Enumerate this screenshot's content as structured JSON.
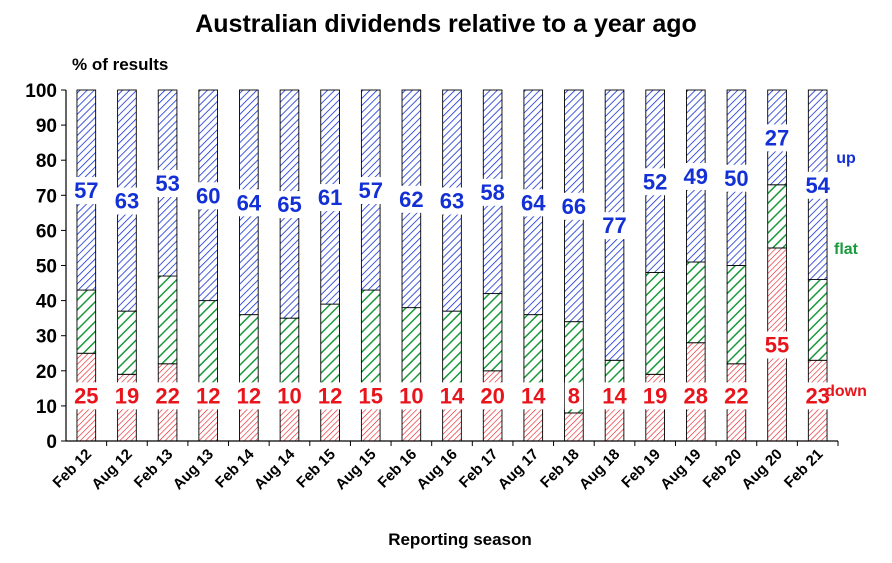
{
  "chart_data": {
    "type": "bar",
    "stacked": true,
    "title": "Australian dividends relative to a year ago",
    "ylabel": "% of results",
    "xlabel": "Reporting season",
    "ylim": [
      0,
      100
    ],
    "yticks": [
      0,
      10,
      20,
      30,
      40,
      50,
      60,
      70,
      80,
      90,
      100
    ],
    "grid": false,
    "categories": [
      "Feb 12",
      "Aug 12",
      "Feb 13",
      "Aug 13",
      "Feb 14",
      "Aug 14",
      "Feb 15",
      "Aug 15",
      "Feb 16",
      "Aug 16",
      "Feb 17",
      "Aug 17",
      "Feb 18",
      "Aug 18",
      "Feb 19",
      "Aug 19",
      "Feb 20",
      "Aug 20",
      "Feb 21"
    ],
    "series": [
      {
        "name": "down",
        "color": "#e8141b",
        "values": [
          25,
          19,
          22,
          12,
          12,
          10,
          12,
          15,
          10,
          14,
          20,
          14,
          8,
          14,
          19,
          28,
          22,
          55,
          23
        ]
      },
      {
        "name": "flat",
        "color": "#1a9a3c",
        "values": [
          18,
          18,
          25,
          28,
          24,
          25,
          27,
          28,
          28,
          23,
          22,
          22,
          26,
          9,
          29,
          23,
          28,
          18,
          23
        ]
      },
      {
        "name": "up",
        "color": "#1230d6",
        "values": [
          57,
          63,
          53,
          60,
          64,
          65,
          61,
          57,
          62,
          63,
          58,
          64,
          66,
          77,
          52,
          49,
          50,
          27,
          54
        ]
      }
    ],
    "legend_placement": "right"
  }
}
